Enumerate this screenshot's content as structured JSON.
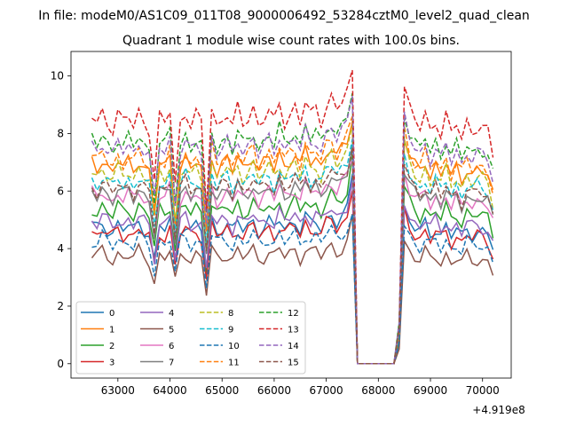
{
  "figure": {
    "suptitle": "In file: modeM0/AS1C09_011T08_9000006492_53284cztM0_level2_quad_clean",
    "x_offset_label": "+4.919e8"
  },
  "chart_data": {
    "type": "line",
    "title": "Quadrant 1 module wise count rates with 100.0s bins.",
    "xlabel": "",
    "ylabel": "",
    "x_offset": 491900000,
    "xlim": [
      62100,
      70550
    ],
    "ylim": [
      -0.5,
      10.85
    ],
    "xticks": [
      63000,
      64000,
      65000,
      66000,
      67000,
      68000,
      69000,
      70000
    ],
    "yticks": [
      0,
      2,
      4,
      6,
      8,
      10
    ],
    "grid": false,
    "legend": {
      "placement": "lower-left",
      "columns": 4
    },
    "shape": {
      "x": [
        62500,
        62600,
        62700,
        62800,
        62900,
        63000,
        63100,
        63200,
        63300,
        63400,
        63500,
        63600,
        63700,
        63800,
        63900,
        64000,
        64100,
        64200,
        64300,
        64400,
        64500,
        64600,
        64700,
        64800,
        64900,
        65000,
        65100,
        65200,
        65300,
        65400,
        65500,
        65600,
        65700,
        65800,
        65900,
        66000,
        66100,
        66200,
        66300,
        66400,
        66500,
        66600,
        66700,
        66800,
        66900,
        67000,
        67100,
        67200,
        67300,
        67400,
        67500,
        67600,
        67700,
        67800,
        67900,
        68000,
        68100,
        68200,
        68300,
        68400,
        68500,
        68600,
        68700,
        68800,
        68900,
        69000,
        69100,
        69200,
        69300,
        69400,
        69500,
        69600,
        69700,
        69800,
        69900,
        70000,
        70100,
        70200
      ],
      "mult": [
        1.0,
        0.97,
        1.02,
        0.98,
        0.95,
        1.01,
        0.97,
        1.0,
        0.96,
        1.02,
        0.98,
        0.95,
        0.74,
        0.99,
        0.97,
        1.03,
        0.73,
        0.98,
        1.02,
        0.96,
        1.0,
        0.97,
        0.64,
        1.04,
        0.96,
        0.99,
        1.01,
        0.95,
        1.03,
        0.97,
        1.0,
        1.04,
        0.96,
        0.99,
        1.02,
        0.97,
        1.05,
        0.98,
        1.01,
        1.04,
        0.97,
        1.06,
        1.0,
        1.03,
        0.98,
        1.05,
        1.08,
        1.02,
        1.06,
        1.1,
        1.12,
        0,
        0,
        0,
        0,
        0,
        0,
        0,
        0,
        0.18,
        1.15,
        1.05,
        1.0,
        0.97,
        1.03,
        0.96,
        1.01,
        0.95,
        1.02,
        0.94,
        0.99,
        0.93,
        1.0,
        0.96,
        0.98,
        0.97,
        0.95,
        0.85
      ]
    },
    "series": [
      {
        "name": "0",
        "color": "#1f77b4",
        "dash": false,
        "base": 4.8,
        "peak": 6.6
      },
      {
        "name": "1",
        "color": "#ff7f0e",
        "dash": false,
        "base": 7.0,
        "peak": 8.4
      },
      {
        "name": "2",
        "color": "#2ca02c",
        "dash": false,
        "base": 5.4,
        "peak": 7.3
      },
      {
        "name": "3",
        "color": "#d62728",
        "dash": false,
        "base": 4.6,
        "peak": 6.0
      },
      {
        "name": "4",
        "color": "#9467bd",
        "dash": false,
        "base": 5.0,
        "peak": 6.4
      },
      {
        "name": "5",
        "color": "#8c564b",
        "dash": false,
        "base": 3.8,
        "peak": 5.2
      },
      {
        "name": "6",
        "color": "#e377c2",
        "dash": false,
        "base": 5.9,
        "peak": 7.1
      },
      {
        "name": "7",
        "color": "#7f7f7f",
        "dash": false,
        "base": 6.0,
        "peak": 7.6
      },
      {
        "name": "8",
        "color": "#bcbd22",
        "dash": true,
        "base": 6.7,
        "peak": 8.3
      },
      {
        "name": "9",
        "color": "#17becf",
        "dash": true,
        "base": 6.4,
        "peak": 7.8
      },
      {
        "name": "10",
        "color": "#1f77b4",
        "dash": true,
        "base": 4.3,
        "peak": 5.2
      },
      {
        "name": "11",
        "color": "#ff7f0e",
        "dash": true,
        "base": 7.2,
        "peak": 8.6
      },
      {
        "name": "12",
        "color": "#2ca02c",
        "dash": true,
        "base": 7.8,
        "peak": 9.4
      },
      {
        "name": "13",
        "color": "#d62728",
        "dash": true,
        "base": 8.6,
        "peak": 10.2
      },
      {
        "name": "14",
        "color": "#9467bd",
        "dash": true,
        "base": 7.6,
        "peak": 9.3
      },
      {
        "name": "15",
        "color": "#8c564b",
        "dash": true,
        "base": 6.2,
        "peak": 7.5
      }
    ]
  }
}
